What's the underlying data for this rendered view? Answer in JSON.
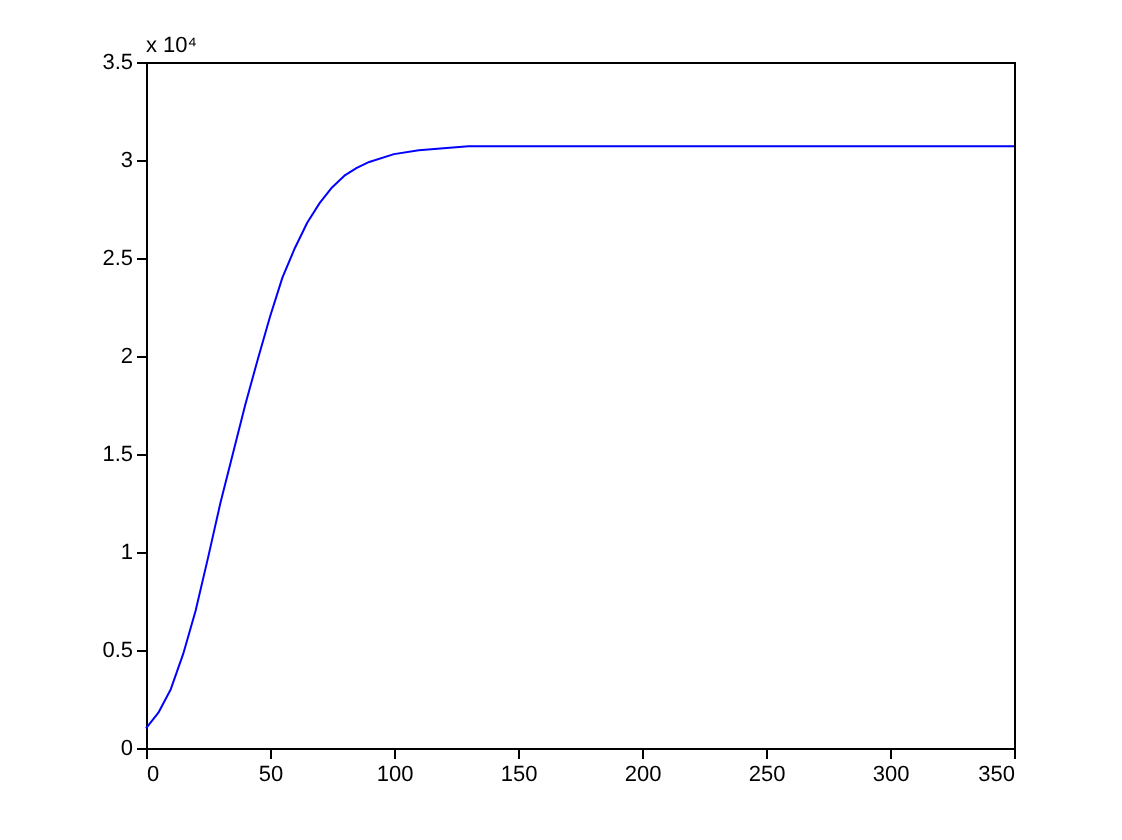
{
  "chart_data": {
    "type": "line",
    "x": [
      0,
      5,
      10,
      15,
      20,
      25,
      30,
      35,
      40,
      45,
      50,
      55,
      60,
      65,
      70,
      75,
      80,
      85,
      90,
      100,
      110,
      120,
      130,
      150,
      200,
      250,
      300,
      350
    ],
    "series": [
      {
        "color": "#0000ff",
        "values": [
          0.1,
          0.18,
          0.3,
          0.48,
          0.7,
          0.97,
          1.25,
          1.5,
          1.75,
          1.98,
          2.2,
          2.4,
          2.55,
          2.68,
          2.78,
          2.86,
          2.92,
          2.96,
          2.99,
          3.03,
          3.05,
          3.06,
          3.07,
          3.07,
          3.07,
          3.07,
          3.07,
          3.07
        ]
      }
    ],
    "xlim": [
      0,
      350
    ],
    "xticks": [
      0,
      50,
      100,
      150,
      200,
      250,
      300,
      350
    ],
    "ylim": [
      0,
      3.5
    ],
    "yticks": [
      0,
      0.5,
      1,
      1.5,
      2,
      2.5,
      3,
      3.5
    ],
    "annotations": [
      "x 10⁴"
    ],
    "grid": false,
    "marker": "none",
    "line_style": "solid"
  }
}
